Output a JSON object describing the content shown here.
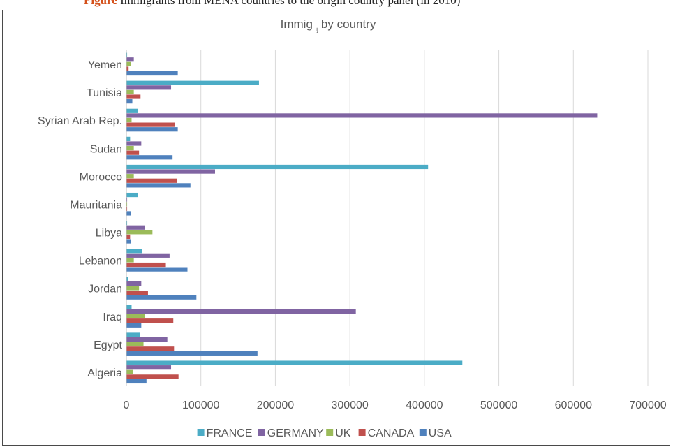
{
  "header": {
    "figure_label": "Figure",
    "caption": "Immigrants from MENA countries to the origin country panel (in 2010)"
  },
  "chart_data": {
    "type": "bar",
    "orientation": "horizontal",
    "title": "Immig",
    "title_subscript": "ij",
    "title_suffix": "by country",
    "categories": [
      "Algeria",
      "Egypt",
      "Iraq",
      "Jordan",
      "Lebanon",
      "Libya",
      "Mauritania",
      "Morocco",
      "Sudan",
      "Syrian Arab Rep.",
      "Tunisia",
      "Yemen"
    ],
    "series": [
      {
        "name": "FRANCE",
        "color": "#4bacc6",
        "values": [
          451000,
          18000,
          7000,
          2000,
          21000,
          1000,
          15000,
          405000,
          5000,
          15000,
          178000,
          1000
        ]
      },
      {
        "name": "GERMANY",
        "color": "#8064a2",
        "values": [
          60000,
          55000,
          308000,
          20000,
          58000,
          25000,
          1000,
          119000,
          20000,
          632000,
          60000,
          10000
        ]
      },
      {
        "name": "UK",
        "color": "#9bbb59",
        "values": [
          9000,
          23000,
          25000,
          17000,
          10000,
          35000,
          1000,
          10000,
          10000,
          7000,
          10000,
          6000
        ]
      },
      {
        "name": "CANADA",
        "color": "#c0504d",
        "values": [
          70000,
          64000,
          63000,
          29000,
          53000,
          5000,
          1000,
          68000,
          17000,
          65000,
          19000,
          3000
        ]
      },
      {
        "name": "USA",
        "color": "#4f81bd",
        "values": [
          27000,
          176000,
          20000,
          94000,
          82000,
          6000,
          6000,
          86000,
          62000,
          69000,
          8000,
          69000
        ]
      }
    ],
    "xlim": [
      0,
      700000
    ],
    "xticks": [
      "0",
      "100000",
      "200000",
      "300000",
      "400000",
      "500000",
      "600000",
      "700000"
    ],
    "xlabel": "",
    "ylabel": "",
    "grid": "vertical",
    "legend": "bottom"
  }
}
